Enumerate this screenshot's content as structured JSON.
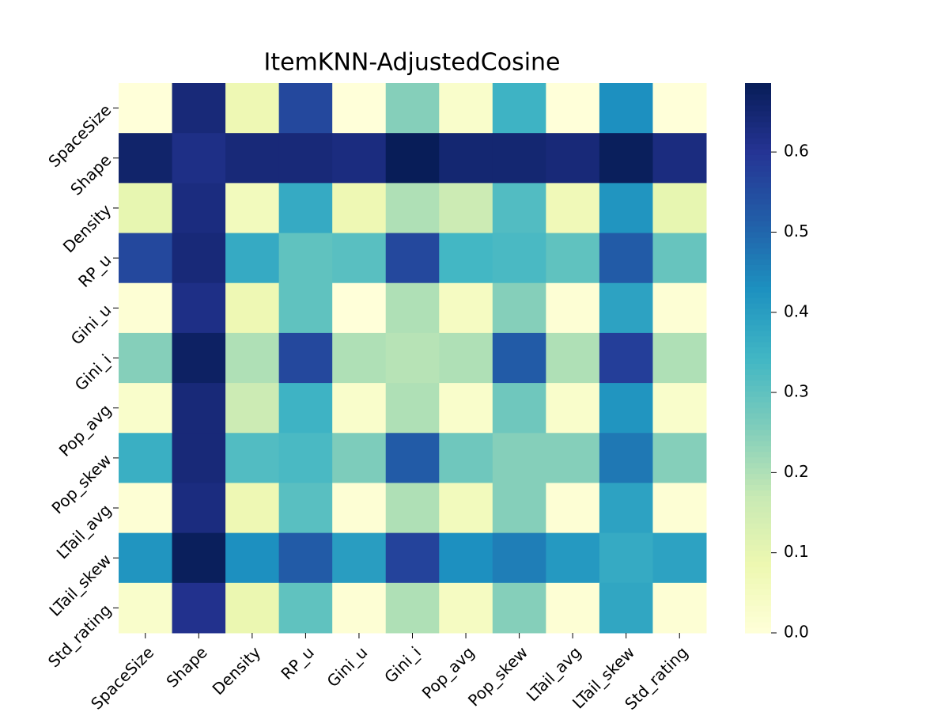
{
  "chart_data": {
    "type": "heatmap",
    "title": "ItemKNN-AdjustedCosine",
    "x_categories": [
      "SpaceSize",
      "Shape",
      "Density",
      "RP_u",
      "Gini_u",
      "Gini_i",
      "Pop_avg",
      "Pop_skew",
      "LTail_avg",
      "LTail_skew",
      "Std_rating"
    ],
    "y_categories": [
      "SpaceSize",
      "Shape",
      "Density",
      "RP_u",
      "Gini_u",
      "Gini_i",
      "Pop_avg",
      "Pop_skew",
      "LTail_avg",
      "LTail_skew",
      "Std_rating"
    ],
    "values": [
      [
        0.0,
        0.64,
        0.08,
        0.56,
        0.0,
        0.25,
        0.03,
        0.35,
        0.0,
        0.43,
        0.0
      ],
      [
        0.66,
        0.62,
        0.64,
        0.64,
        0.63,
        0.686,
        0.65,
        0.65,
        0.64,
        0.68,
        0.63
      ],
      [
        0.1,
        0.63,
        0.06,
        0.37,
        0.08,
        0.2,
        0.16,
        0.32,
        0.07,
        0.42,
        0.1
      ],
      [
        0.56,
        0.64,
        0.37,
        0.3,
        0.31,
        0.56,
        0.34,
        0.33,
        0.3,
        0.52,
        0.29
      ],
      [
        0.01,
        0.62,
        0.08,
        0.3,
        0.0,
        0.2,
        0.05,
        0.25,
        0.01,
        0.39,
        0.01
      ],
      [
        0.25,
        0.67,
        0.2,
        0.56,
        0.2,
        0.19,
        0.2,
        0.52,
        0.2,
        0.58,
        0.2
      ],
      [
        0.03,
        0.64,
        0.16,
        0.35,
        0.03,
        0.2,
        0.03,
        0.28,
        0.03,
        0.42,
        0.03
      ],
      [
        0.36,
        0.64,
        0.32,
        0.33,
        0.26,
        0.52,
        0.28,
        0.25,
        0.25,
        0.47,
        0.25
      ],
      [
        0.01,
        0.63,
        0.08,
        0.31,
        0.01,
        0.2,
        0.06,
        0.25,
        0.01,
        0.39,
        0.01
      ],
      [
        0.42,
        0.68,
        0.43,
        0.52,
        0.4,
        0.57,
        0.43,
        0.46,
        0.41,
        0.37,
        0.39
      ],
      [
        0.03,
        0.61,
        0.09,
        0.3,
        0.01,
        0.2,
        0.05,
        0.25,
        0.01,
        0.38,
        0.01
      ]
    ],
    "colormap": "YlGnBu",
    "zlim": [
      0,
      0.686
    ],
    "zticks": [
      {
        "value": 0,
        "label": "0.0"
      },
      0.1,
      0.2,
      0.3,
      0.4,
      0.5,
      0.6
    ]
  }
}
